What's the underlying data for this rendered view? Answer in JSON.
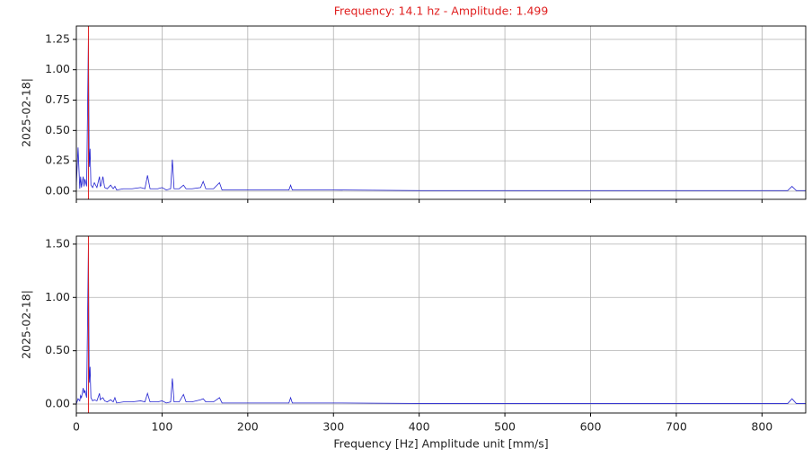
{
  "chart_data": [
    {
      "type": "line",
      "title": "Frequency: 14.1 hz -  Amplitude: 1.499",
      "title_color": "#e02020",
      "y_label": "2025-02-18|",
      "x": [
        0,
        2,
        4,
        5,
        6,
        8,
        9,
        10,
        12,
        14.1,
        15,
        16,
        17,
        19,
        21,
        24,
        27,
        28,
        29,
        31,
        33,
        36,
        40,
        43,
        45,
        47,
        55,
        65,
        75,
        80,
        83,
        86,
        95,
        100,
        105,
        110,
        112,
        114,
        120,
        125,
        128,
        135,
        145,
        148,
        151,
        160,
        167,
        170,
        180,
        200,
        240,
        248,
        250,
        252,
        300,
        400,
        500,
        600,
        700,
        800,
        830,
        835,
        840,
        851
      ],
      "series": [
        {
          "color": "#2020d0",
          "values": [
            0.05,
            0.36,
            0.02,
            0.12,
            0.03,
            0.12,
            0.04,
            0.1,
            0.04,
            1.28,
            0.2,
            0.35,
            0.05,
            0.03,
            0.07,
            0.03,
            0.12,
            0.04,
            0.05,
            0.12,
            0.03,
            0.02,
            0.05,
            0.02,
            0.04,
            0.01,
            0.02,
            0.02,
            0.03,
            0.02,
            0.13,
            0.02,
            0.02,
            0.03,
            0.01,
            0.02,
            0.26,
            0.02,
            0.02,
            0.05,
            0.02,
            0.02,
            0.03,
            0.08,
            0.02,
            0.02,
            0.07,
            0.01,
            0.01,
            0.01,
            0.01,
            0.01,
            0.05,
            0.01,
            0.01,
            0.005,
            0.005,
            0.005,
            0.005,
            0.005,
            0.005,
            0.04,
            0.005,
            0.005
          ]
        }
      ],
      "marker": {
        "x": 14.1,
        "color": "#e02020"
      },
      "xlim": [
        0,
        851
      ],
      "ylim": [
        -0.067,
        1.36
      ],
      "xticks": [
        0,
        100,
        200,
        300,
        400,
        500,
        600,
        700,
        800
      ],
      "show_xtick_labels": false,
      "yticks": [
        {
          "value": 0,
          "label": "0.00"
        },
        {
          "value": 0.25,
          "label": "0.25"
        },
        {
          "value": 0.5,
          "label": "0.50"
        },
        {
          "value": 0.75,
          "label": "0.75"
        },
        {
          "value": 1,
          "label": "1.00"
        },
        {
          "value": 1.25,
          "label": "1.25"
        }
      ],
      "grid": true
    },
    {
      "type": "line",
      "y_label": "2025-02-18|",
      "x_label": "Frequency [Hz]    Amplitude unit [mm/s]",
      "x": [
        0,
        2,
        4,
        5,
        6,
        8,
        9,
        10,
        12,
        14.1,
        15,
        16,
        17,
        19,
        21,
        24,
        27,
        28,
        29,
        31,
        33,
        36,
        40,
        43,
        45,
        47,
        55,
        65,
        75,
        80,
        83,
        86,
        95,
        100,
        105,
        110,
        112,
        114,
        120,
        125,
        128,
        135,
        145,
        148,
        151,
        160,
        167,
        170,
        180,
        200,
        240,
        248,
        250,
        252,
        300,
        400,
        500,
        600,
        700,
        800,
        830,
        835,
        840,
        851
      ],
      "series": [
        {
          "color": "#2020d0",
          "values": [
            0,
            0.05,
            0.03,
            0.08,
            0.06,
            0.15,
            0.1,
            0.13,
            0.06,
            1.499,
            0.2,
            0.35,
            0.06,
            0.03,
            0.04,
            0.03,
            0.1,
            0.04,
            0.05,
            0.06,
            0.03,
            0.02,
            0.04,
            0.02,
            0.06,
            0.01,
            0.02,
            0.02,
            0.03,
            0.02,
            0.1,
            0.02,
            0.02,
            0.03,
            0.01,
            0.02,
            0.24,
            0.02,
            0.02,
            0.09,
            0.02,
            0.02,
            0.04,
            0.05,
            0.02,
            0.02,
            0.06,
            0.01,
            0.01,
            0.01,
            0.01,
            0.01,
            0.06,
            0.01,
            0.01,
            0.005,
            0.005,
            0.005,
            0.005,
            0.005,
            0.005,
            0.05,
            0.005,
            0.005
          ]
        }
      ],
      "marker": {
        "x": 14.1,
        "color": "#e02020"
      },
      "xlim": [
        0,
        851
      ],
      "ylim": [
        -0.084,
        1.575
      ],
      "xticks": [
        0,
        100,
        200,
        300,
        400,
        500,
        600,
        700,
        800
      ],
      "show_xtick_labels": true,
      "yticks": [
        {
          "value": 0,
          "label": "0.00"
        },
        {
          "value": 0.5,
          "label": "0.50"
        },
        {
          "value": 1,
          "label": "1.00"
        },
        {
          "value": 1.5,
          "label": "1.50"
        }
      ],
      "grid": true
    }
  ]
}
